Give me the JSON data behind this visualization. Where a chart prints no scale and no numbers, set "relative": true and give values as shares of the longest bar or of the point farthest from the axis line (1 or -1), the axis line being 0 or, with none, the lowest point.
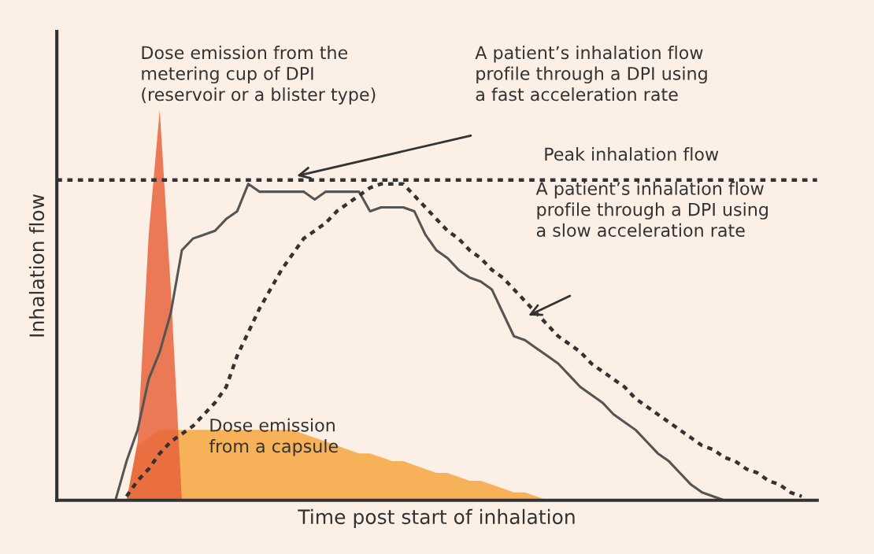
{
  "chart_data": {
    "type": "line",
    "relative": true,
    "xlabel": "Time post start of inhalation",
    "ylabel": "Inhalation flow",
    "categories": [
      null,
      null,
      null,
      null,
      null,
      null,
      null,
      null,
      null,
      null,
      null,
      null,
      null,
      null,
      null,
      null,
      null,
      null,
      null,
      null,
      null,
      null,
      null,
      null,
      null,
      null,
      null,
      null,
      null,
      null,
      null,
      null,
      null,
      null,
      null,
      null,
      null,
      null,
      null,
      null,
      null,
      null,
      null,
      null,
      null,
      null,
      null,
      null,
      null,
      null,
      null,
      null,
      null,
      null,
      null,
      null,
      null,
      null,
      null,
      null,
      null,
      null,
      null,
      null,
      null,
      null,
      null,
      null,
      null
    ],
    "series": [
      {
        "type": "area",
        "color": "#f5a640",
        "values": [
          null,
          null,
          null,
          null,
          null,
          null,
          0,
          0.14,
          0.16,
          0.18,
          0.18,
          0.18,
          0.18,
          0.18,
          0.18,
          0.18,
          0.18,
          0.18,
          0.18,
          0.18,
          0.18,
          0.18,
          0.17,
          0.16,
          0.15,
          0.14,
          0.13,
          0.12,
          0.12,
          0.11,
          0.1,
          0.1,
          0.09,
          0.08,
          0.07,
          0.07,
          0.06,
          0.05,
          0.05,
          0.04,
          0.03,
          0.02,
          0.02,
          0.01,
          0.0,
          null,
          null,
          null,
          null,
          null,
          null,
          null,
          null,
          null,
          null,
          null,
          null,
          null,
          null,
          null,
          null,
          null,
          null,
          null,
          null,
          null,
          null,
          null,
          null
        ]
      },
      {
        "type": "area",
        "color": "#e8643c",
        "values": [
          null,
          null,
          null,
          null,
          null,
          null,
          0,
          0.15,
          0.68,
          1.0,
          0.54,
          0,
          null,
          null,
          null,
          null,
          null,
          null,
          null,
          null,
          null,
          null,
          null,
          null,
          null,
          null,
          null,
          null,
          null,
          null,
          null,
          null,
          null,
          null,
          null,
          null,
          null,
          null,
          null,
          null,
          null,
          null,
          null,
          null,
          null,
          null,
          null,
          null,
          null,
          null,
          null,
          null,
          null,
          null,
          null,
          null,
          null,
          null,
          null,
          null,
          null,
          null,
          null,
          null,
          null,
          null,
          null,
          null,
          null
        ]
      },
      {
        "color": "#555555",
        "line_style": "solid",
        "values": [
          null,
          null,
          null,
          null,
          null,
          0,
          0.1,
          0.18,
          0.31,
          0.38,
          0.48,
          0.64,
          0.67,
          0.68,
          0.69,
          0.72,
          0.74,
          0.81,
          0.79,
          0.79,
          0.79,
          0.79,
          0.79,
          0.77,
          0.79,
          0.79,
          0.79,
          0.79,
          0.74,
          0.75,
          0.75,
          0.75,
          0.74,
          0.68,
          0.64,
          0.62,
          0.59,
          0.57,
          0.56,
          0.54,
          0.48,
          0.42,
          0.41,
          0.39,
          0.37,
          0.35,
          0.32,
          0.29,
          0.27,
          0.25,
          0.22,
          0.2,
          0.18,
          0.15,
          0.12,
          0.1,
          0.07,
          0.04,
          0.02,
          0.01,
          0.0,
          0,
          null,
          null,
          null,
          null,
          null,
          null,
          null
        ]
      },
      {
        "color": "#333333",
        "line_style": "dotted",
        "values": [
          null,
          null,
          null,
          null,
          null,
          null,
          0.01,
          0.05,
          0.08,
          0.12,
          0.15,
          0.17,
          0.19,
          0.22,
          0.25,
          0.29,
          0.37,
          0.43,
          0.49,
          0.54,
          0.59,
          0.63,
          0.67,
          0.69,
          0.71,
          0.74,
          0.76,
          0.78,
          0.8,
          0.81,
          0.81,
          0.81,
          0.78,
          0.75,
          0.72,
          0.69,
          0.67,
          0.64,
          0.62,
          0.59,
          0.57,
          0.54,
          0.51,
          0.48,
          0.45,
          0.42,
          0.4,
          0.38,
          0.35,
          0.33,
          0.31,
          0.29,
          0.26,
          0.24,
          0.22,
          0.2,
          0.18,
          0.16,
          0.14,
          0.13,
          0.11,
          0.1,
          0.08,
          0.07,
          0.05,
          0.04,
          0.02,
          0.01,
          null
        ]
      }
    ],
    "ref_lines": [
      {
        "axis": "y",
        "value": 0.82,
        "label": "Peak inhalation flow",
        "color": "#333333",
        "line_style": "dotted"
      }
    ],
    "annotations": [
      {
        "text": "Dose emission from the\nmetering cup of DPI\n(reservoir or a blister type)"
      },
      {
        "text": "A patient’s inhalation flow\nprofile through a DPI using\na fast acceleration rate"
      },
      {
        "text": "A patient’s inhalation flow\nprofile through a DPI using\na slow acceleration rate"
      },
      {
        "text": "Dose emission\nfrom a capsule"
      }
    ]
  }
}
